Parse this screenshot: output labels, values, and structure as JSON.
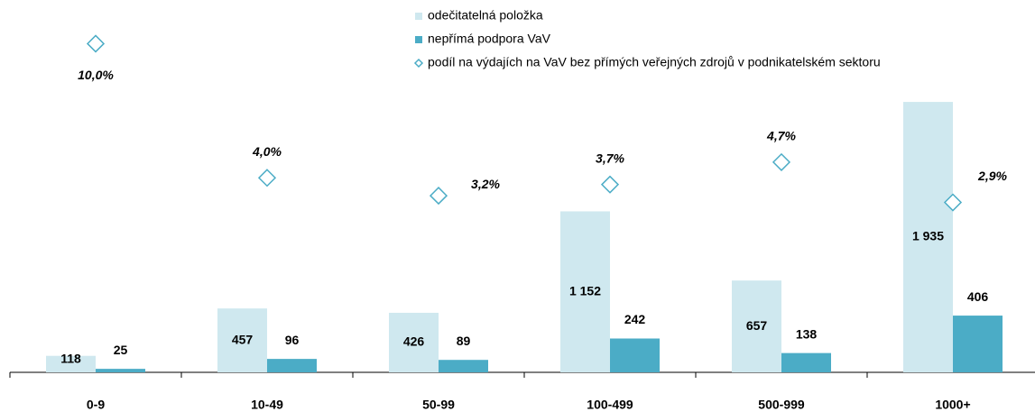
{
  "chart_data": {
    "type": "bar",
    "categories": [
      "0-9",
      "10-49",
      "50-99",
      "100-499",
      "500-999",
      "1000+"
    ],
    "series": [
      {
        "name": "odečitatelná položka",
        "color": "#cfe8ef",
        "values": [
          118,
          457,
          426,
          1152,
          657,
          1935
        ],
        "value_labels": [
          "118",
          "457",
          "426",
          "1 152",
          "657",
          "1 935"
        ]
      },
      {
        "name": "nepřímá podpora VaV",
        "color": "#4bacc6",
        "values": [
          25,
          96,
          89,
          242,
          138,
          406
        ]
      },
      {
        "name": "podíl na výdajích na VaV bez přímých veřejných zdrojů v podnikatelském sektoru",
        "color": "#4bacc6",
        "type": "scatter",
        "axis": "y2",
        "values": [
          10.0,
          4.0,
          3.2,
          3.7,
          4.7,
          2.9
        ],
        "value_labels": [
          "10,0%",
          "4,0%",
          "3,2%",
          "3,7%",
          "4,7%",
          "2,9%"
        ]
      }
    ],
    "ylim": [
      0,
      2000
    ],
    "y2lim": [
      -4.7,
      7.8
    ]
  }
}
